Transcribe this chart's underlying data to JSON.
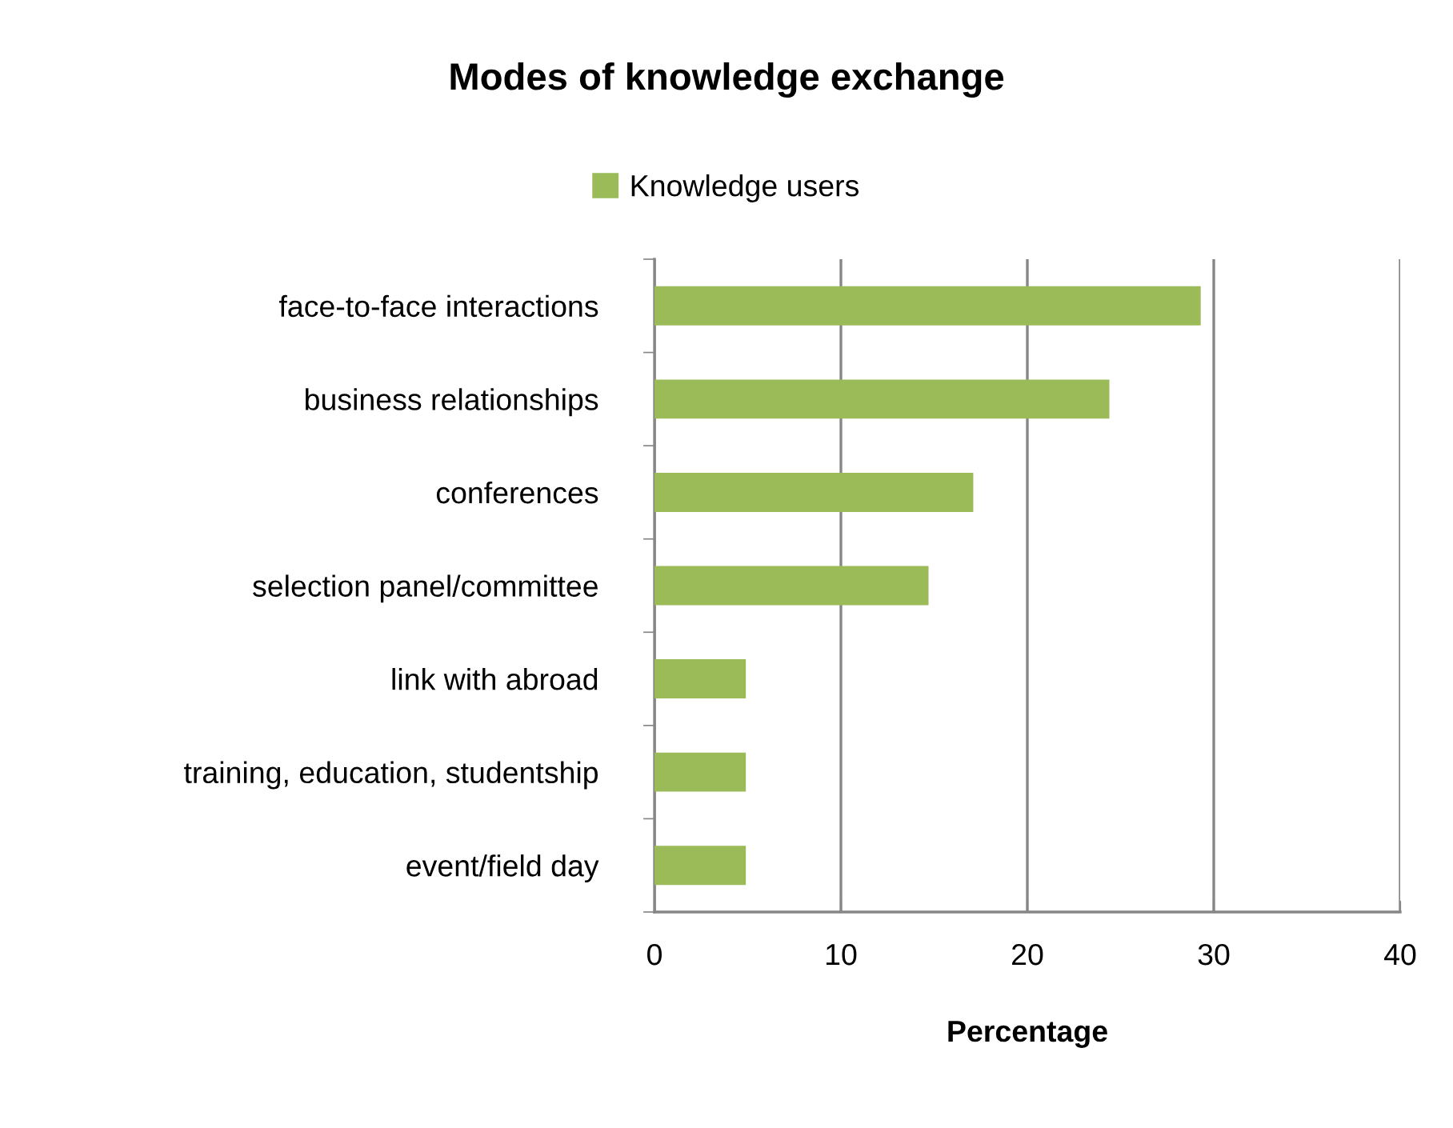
{
  "chart_data": {
    "type": "bar",
    "orientation": "horizontal",
    "title": "Modes of knowledge exchange",
    "xlabel": "Percentage",
    "categories": [
      "face-to-face interactions",
      "business relationships",
      "conferences",
      "selection panel/committee",
      "link with abroad",
      "training, education, studentship",
      "event/field day"
    ],
    "series": [
      {
        "name": "Knowledge users",
        "color": "#9bbb59",
        "values": [
          29.3,
          24.4,
          17.1,
          14.7,
          4.9,
          4.9,
          4.9
        ]
      }
    ],
    "xlim": [
      0,
      40
    ],
    "xticks": [
      0,
      10,
      20,
      30,
      40
    ],
    "grid": "x",
    "legend": "top"
  }
}
